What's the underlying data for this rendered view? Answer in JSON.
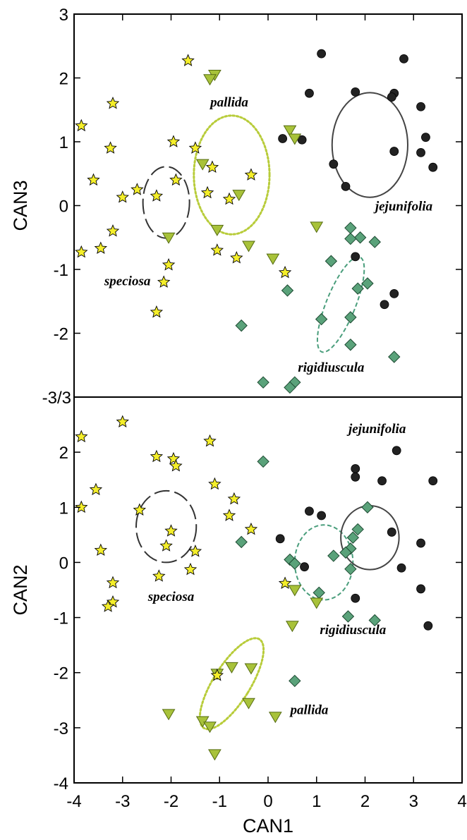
{
  "colors": {
    "jejunifolia": "#222222",
    "rigidiuscula": "#5aa27a",
    "pallida": "#a8c23a",
    "speciosa": "#f4ee2a",
    "ellipse_speciosa": "#333333",
    "ellipse_pallida": "#b8cc3a",
    "ellipse_rigidiuscula": "#4a9e7c",
    "ellipse_jejunifolia": "#444444"
  },
  "chart_data": [
    {
      "type": "scatter",
      "panel": "top",
      "xlabel": "",
      "ylabel": "CAN3",
      "xlim": [
        -4,
        4
      ],
      "ylim": [
        -3,
        3
      ],
      "yticks": [
        3,
        2,
        1,
        0,
        -1,
        -2
      ],
      "yticks_text": [
        "3",
        "2",
        "1",
        "0",
        "-1",
        "-2"
      ],
      "corner_label": "-3/3",
      "series": [
        {
          "name": "jejunifolia",
          "marker": "circle",
          "points": [
            [
              1.1,
              2.38
            ],
            [
              2.8,
              2.3
            ],
            [
              0.85,
              1.76
            ],
            [
              1.8,
              1.78
            ],
            [
              2.6,
              1.76
            ],
            [
              2.55,
              1.7
            ],
            [
              3.15,
              1.55
            ],
            [
              3.25,
              1.07
            ],
            [
              0.3,
              1.05
            ],
            [
              0.7,
              1.03
            ],
            [
              2.6,
              0.85
            ],
            [
              3.15,
              0.83
            ],
            [
              1.35,
              0.65
            ],
            [
              3.4,
              0.6
            ],
            [
              1.6,
              0.3
            ],
            [
              1.8,
              -0.8
            ],
            [
              2.6,
              -1.38
            ],
            [
              2.4,
              -1.55
            ]
          ]
        },
        {
          "name": "rigidiuscula",
          "marker": "diamond",
          "points": [
            [
              1.7,
              -0.35
            ],
            [
              1.9,
              -0.5
            ],
            [
              1.7,
              -0.52
            ],
            [
              2.2,
              -0.57
            ],
            [
              1.3,
              -0.87
            ],
            [
              1.85,
              -1.3
            ],
            [
              2.05,
              -1.22
            ],
            [
              0.4,
              -1.33
            ],
            [
              1.1,
              -1.78
            ],
            [
              1.7,
              -1.75
            ],
            [
              -0.55,
              -1.88
            ],
            [
              1.7,
              -2.18
            ],
            [
              2.6,
              -2.37
            ],
            [
              -0.1,
              -2.77
            ],
            [
              0.55,
              -2.77
            ],
            [
              0.45,
              -2.85
            ]
          ]
        },
        {
          "name": "pallida",
          "marker": "triangle-down",
          "points": [
            [
              -1.1,
              2.05
            ],
            [
              -1.2,
              1.98
            ],
            [
              0.45,
              1.18
            ],
            [
              0.55,
              1.05
            ],
            [
              -1.35,
              0.65
            ],
            [
              -0.6,
              0.17
            ],
            [
              -2.05,
              -0.5
            ],
            [
              -1.05,
              -0.38
            ],
            [
              1.0,
              -0.33
            ],
            [
              -0.4,
              -0.63
            ],
            [
              0.1,
              -0.83
            ]
          ]
        },
        {
          "name": "speciosa",
          "marker": "star",
          "points": [
            [
              -1.65,
              2.27
            ],
            [
              -3.2,
              1.6
            ],
            [
              -3.85,
              1.25
            ],
            [
              -1.95,
              1.0
            ],
            [
              -1.5,
              0.9
            ],
            [
              -3.25,
              0.9
            ],
            [
              -1.15,
              0.6
            ],
            [
              -0.35,
              0.48
            ],
            [
              -3.6,
              0.4
            ],
            [
              -1.9,
              0.4
            ],
            [
              -2.7,
              0.25
            ],
            [
              -1.25,
              0.2
            ],
            [
              -2.3,
              0.15
            ],
            [
              -3.0,
              0.13
            ],
            [
              -0.8,
              0.1
            ],
            [
              -3.2,
              -0.4
            ],
            [
              -3.45,
              -0.67
            ],
            [
              -3.85,
              -0.73
            ],
            [
              -1.05,
              -0.7
            ],
            [
              -0.65,
              -0.82
            ],
            [
              -2.05,
              -0.93
            ],
            [
              0.35,
              -1.05
            ],
            [
              -2.15,
              -1.2
            ],
            [
              -2.3,
              -1.67
            ]
          ]
        }
      ],
      "ellipses": [
        {
          "group": "speciosa",
          "style": "longdash",
          "cx": -2.1,
          "cy": 0.05,
          "rx": 0.48,
          "ry": 0.56,
          "angle": 0
        },
        {
          "group": "pallida",
          "style": "dotted",
          "cx": -0.75,
          "cy": 0.48,
          "rx": 0.78,
          "ry": 0.93,
          "angle": 0
        },
        {
          "group": "jejunifolia",
          "style": "solid",
          "cx": 2.1,
          "cy": 0.95,
          "rx": 0.78,
          "ry": 0.82,
          "angle": 0
        },
        {
          "group": "rigidiuscula",
          "style": "dashed",
          "cx": 1.5,
          "cy": -1.55,
          "rx": 0.3,
          "ry": 0.8,
          "angle": 22
        }
      ],
      "annotations": [
        {
          "text": "pallida",
          "x": -0.8,
          "y": 1.55
        },
        {
          "text": "jejunifolia",
          "x": 2.8,
          "y": -0.08
        },
        {
          "text": "speciosa",
          "x": -2.9,
          "y": -1.25
        },
        {
          "text": "rigidiuscula",
          "x": 1.3,
          "y": -2.6
        }
      ]
    },
    {
      "type": "scatter",
      "panel": "bottom",
      "xlabel": "CAN1",
      "ylabel": "CAN2",
      "xlim": [
        -4,
        4
      ],
      "ylim": [
        -4,
        3
      ],
      "xticks": [
        -4,
        -3,
        -2,
        -1,
        0,
        1,
        2,
        3,
        4
      ],
      "xticks_text": [
        "-4",
        "-3",
        "-2",
        "-1",
        "0",
        "1",
        "2",
        "3",
        "4"
      ],
      "yticks": [
        2,
        1,
        0,
        -1,
        -2,
        -3,
        -4
      ],
      "yticks_text": [
        "2",
        "1",
        "0",
        "-1",
        "-2",
        "-3",
        "-4"
      ],
      "series": [
        {
          "name": "jejunifolia",
          "marker": "circle",
          "points": [
            [
              2.65,
              2.03
            ],
            [
              1.8,
              1.7
            ],
            [
              1.8,
              1.55
            ],
            [
              2.35,
              1.48
            ],
            [
              3.4,
              1.48
            ],
            [
              0.85,
              0.93
            ],
            [
              1.1,
              0.85
            ],
            [
              0.25,
              0.43
            ],
            [
              2.55,
              0.55
            ],
            [
              3.15,
              0.35
            ],
            [
              0.75,
              -0.08
            ],
            [
              2.75,
              -0.1
            ],
            [
              1.8,
              -0.65
            ],
            [
              3.15,
              -0.48
            ],
            [
              3.3,
              -1.15
            ]
          ]
        },
        {
          "name": "rigidiuscula",
          "marker": "diamond",
          "points": [
            [
              -0.1,
              1.83
            ],
            [
              2.05,
              1.0
            ],
            [
              1.85,
              0.6
            ],
            [
              1.75,
              0.45
            ],
            [
              1.7,
              0.25
            ],
            [
              1.6,
              0.18
            ],
            [
              0.45,
              0.05
            ],
            [
              0.55,
              -0.02
            ],
            [
              1.35,
              0.12
            ],
            [
              1.7,
              -0.12
            ],
            [
              1.05,
              -0.55
            ],
            [
              -0.55,
              0.37
            ],
            [
              1.65,
              -0.98
            ],
            [
              2.2,
              -1.05
            ],
            [
              0.55,
              -2.15
            ]
          ]
        },
        {
          "name": "pallida",
          "marker": "triangle-down",
          "points": [
            [
              0.55,
              -0.5
            ],
            [
              1.0,
              -0.73
            ],
            [
              0.5,
              -1.15
            ],
            [
              -1.05,
              -2.02
            ],
            [
              -0.75,
              -1.9
            ],
            [
              -0.35,
              -1.92
            ],
            [
              -0.4,
              -2.55
            ],
            [
              -1.35,
              -2.88
            ],
            [
              -1.2,
              -2.98
            ],
            [
              -2.05,
              -2.75
            ],
            [
              0.15,
              -2.8
            ],
            [
              -1.1,
              -3.48
            ]
          ]
        },
        {
          "name": "speciosa",
          "marker": "star",
          "points": [
            [
              -3.85,
              2.28
            ],
            [
              -3.0,
              2.55
            ],
            [
              -2.3,
              1.92
            ],
            [
              -1.95,
              1.88
            ],
            [
              -1.9,
              1.75
            ],
            [
              -1.2,
              2.2
            ],
            [
              -3.55,
              1.32
            ],
            [
              -3.85,
              1.0
            ],
            [
              -1.1,
              1.42
            ],
            [
              -0.7,
              1.15
            ],
            [
              -2.65,
              0.95
            ],
            [
              -0.8,
              0.85
            ],
            [
              -2.0,
              0.57
            ],
            [
              -0.35,
              0.6
            ],
            [
              -2.1,
              0.3
            ],
            [
              -3.45,
              0.22
            ],
            [
              -1.5,
              0.2
            ],
            [
              -2.25,
              -0.25
            ],
            [
              -1.6,
              -0.13
            ],
            [
              0.35,
              -0.38
            ],
            [
              -3.2,
              -0.37
            ],
            [
              -3.2,
              -0.72
            ],
            [
              -3.3,
              -0.8
            ],
            [
              -1.05,
              -2.05
            ]
          ]
        }
      ],
      "ellipses": [
        {
          "group": "speciosa",
          "style": "longdash",
          "cx": -2.1,
          "cy": 0.65,
          "rx": 0.62,
          "ry": 0.65,
          "angle": 0
        },
        {
          "group": "pallida",
          "style": "dotted",
          "cx": -0.75,
          "cy": -2.2,
          "rx": 0.38,
          "ry": 0.95,
          "angle": 32
        },
        {
          "group": "rigidiuscula",
          "style": "dashed",
          "cx": 1.15,
          "cy": 0.0,
          "rx": 0.6,
          "ry": 0.68,
          "angle": 0
        },
        {
          "group": "jejunifolia",
          "style": "solid",
          "cx": 2.1,
          "cy": 0.45,
          "rx": 0.6,
          "ry": 0.58,
          "angle": 0
        }
      ],
      "annotations": [
        {
          "text": "jejunifolia",
          "x": 2.25,
          "y": 2.35
        },
        {
          "text": "speciosa",
          "x": -2.0,
          "y": -0.7
        },
        {
          "text": "rigidiuscula",
          "x": 1.75,
          "y": -1.3
        },
        {
          "text": "pallida",
          "x": 0.85,
          "y": -2.75
        }
      ]
    }
  ]
}
